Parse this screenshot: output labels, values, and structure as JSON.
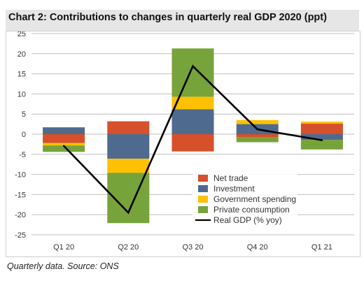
{
  "title": "Chart 2: Contributions to changes in quarterly real GDP 2020 (ppt)",
  "note": "Quarterly data. Source: ONS",
  "colors": {
    "net_trade": "#d6502b",
    "investment": "#4f6a8f",
    "government_spending": "#ffc000",
    "private_consumption": "#77a33b",
    "real_gdp": "#000000",
    "gridline": "#bfbfbf",
    "title_bg": "#e6e6e6"
  },
  "chart_data": {
    "type": "bar",
    "stacked": true,
    "categories": [
      "Q1 20",
      "Q2 20",
      "Q3 20",
      "Q4 20",
      "Q1 21"
    ],
    "series": [
      {
        "name": "Net trade",
        "key": "net_trade",
        "values": [
          -2.2,
          3.2,
          -4.3,
          -0.7,
          2.6
        ]
      },
      {
        "name": "Investment",
        "key": "investment",
        "values": [
          1.7,
          -6.1,
          6.2,
          2.5,
          -1.4
        ]
      },
      {
        "name": "Government spending",
        "key": "government_spending",
        "values": [
          -0.6,
          -3.5,
          3.1,
          1.0,
          0.5
        ]
      },
      {
        "name": "Private consumption",
        "key": "private_consumption",
        "values": [
          -1.6,
          -12.5,
          12.0,
          -1.3,
          -2.4
        ]
      }
    ],
    "line_series": {
      "name": "Real GDP (% yoy)",
      "key": "real_gdp",
      "values": [
        -2.9,
        -19.5,
        16.9,
        1.2,
        -1.5
      ]
    },
    "ylim": [
      -25,
      25
    ],
    "yticks": [
      25,
      20,
      15,
      10,
      5,
      0,
      -5,
      -10,
      -15,
      -20,
      -25
    ],
    "grid": "horizontal",
    "legend_position": "lower-right inside plot",
    "legend_order": [
      "net_trade",
      "investment",
      "government_spending",
      "private_consumption",
      "real_gdp"
    ]
  }
}
